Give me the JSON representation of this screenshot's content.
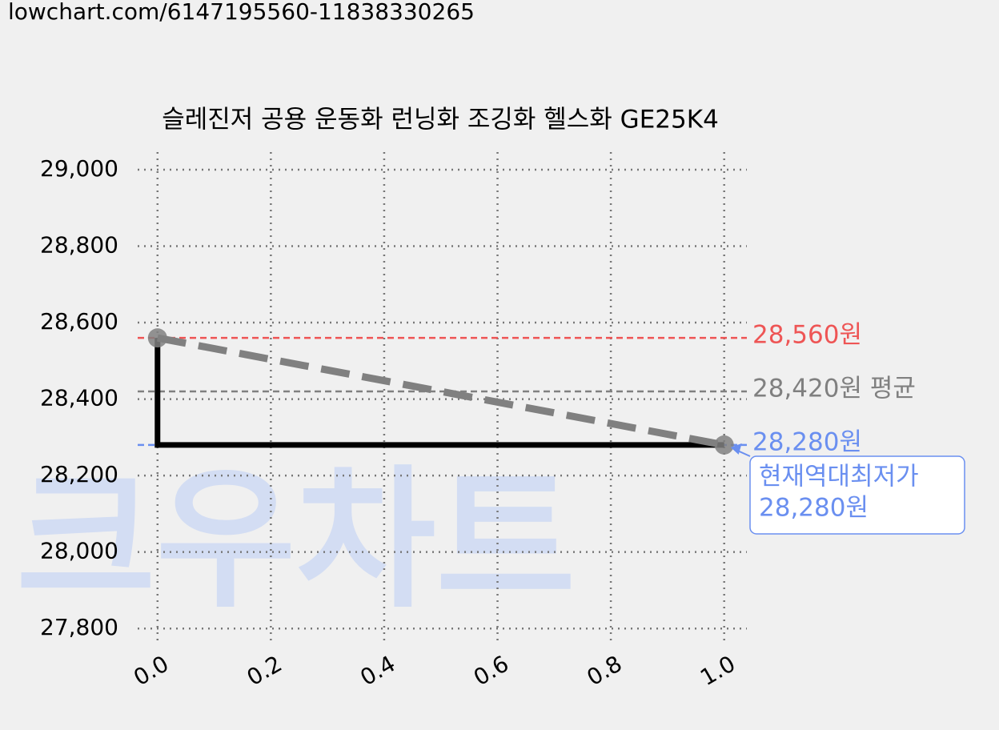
{
  "url": "lowchart.com/6147195560-11838330265",
  "chart_data": {
    "type": "line",
    "title": "슬레진저 공용 운동화 런닝화 조깅화 헬스화 GE25K4",
    "watermark": "크우차트",
    "xlim": [
      -0.035,
      1.04
    ],
    "xticks": [
      {
        "value": 0,
        "label": "0.0"
      },
      {
        "value": 0.2,
        "label": "0.2"
      },
      {
        "value": 0.4,
        "label": "0.4"
      },
      {
        "value": 0.6,
        "label": "0.6"
      },
      {
        "value": 0.8,
        "label": "0.8"
      },
      {
        "value": 1,
        "label": "1.0"
      }
    ],
    "ylim": [
      27769,
      29046
    ],
    "yticks": [
      {
        "value": 27800,
        "label": "27,800"
      },
      {
        "value": 28000,
        "label": "28,000"
      },
      {
        "value": 28200,
        "label": "28,200"
      },
      {
        "value": 28400,
        "label": "28,400"
      },
      {
        "value": 28600,
        "label": "28,600"
      },
      {
        "value": 28800,
        "label": "28,800"
      },
      {
        "value": 29000,
        "label": "29,000"
      }
    ],
    "grid": true,
    "series": [
      {
        "color": "#000000",
        "style": "solid",
        "x": [
          0,
          0,
          1
        ],
        "values": [
          28560,
          28280,
          28280
        ]
      },
      {
        "color": "#808080",
        "style": "dashed",
        "markers": true,
        "x": [
          0,
          1
        ],
        "values": [
          28560,
          28280
        ]
      }
    ],
    "hlines": [
      {
        "value": 28560,
        "label": "28,560원",
        "color": "#ee5555"
      },
      {
        "value": 28420,
        "label": "28,420원 평균",
        "color": "#808080"
      },
      {
        "value": 28280,
        "label": "28,280원",
        "color": "#6a8ff0"
      }
    ],
    "annotation": {
      "x": 1,
      "y": 28280,
      "lines": [
        "현재역대최저가",
        "28,280원"
      ],
      "color": "#6a8ff0"
    }
  }
}
